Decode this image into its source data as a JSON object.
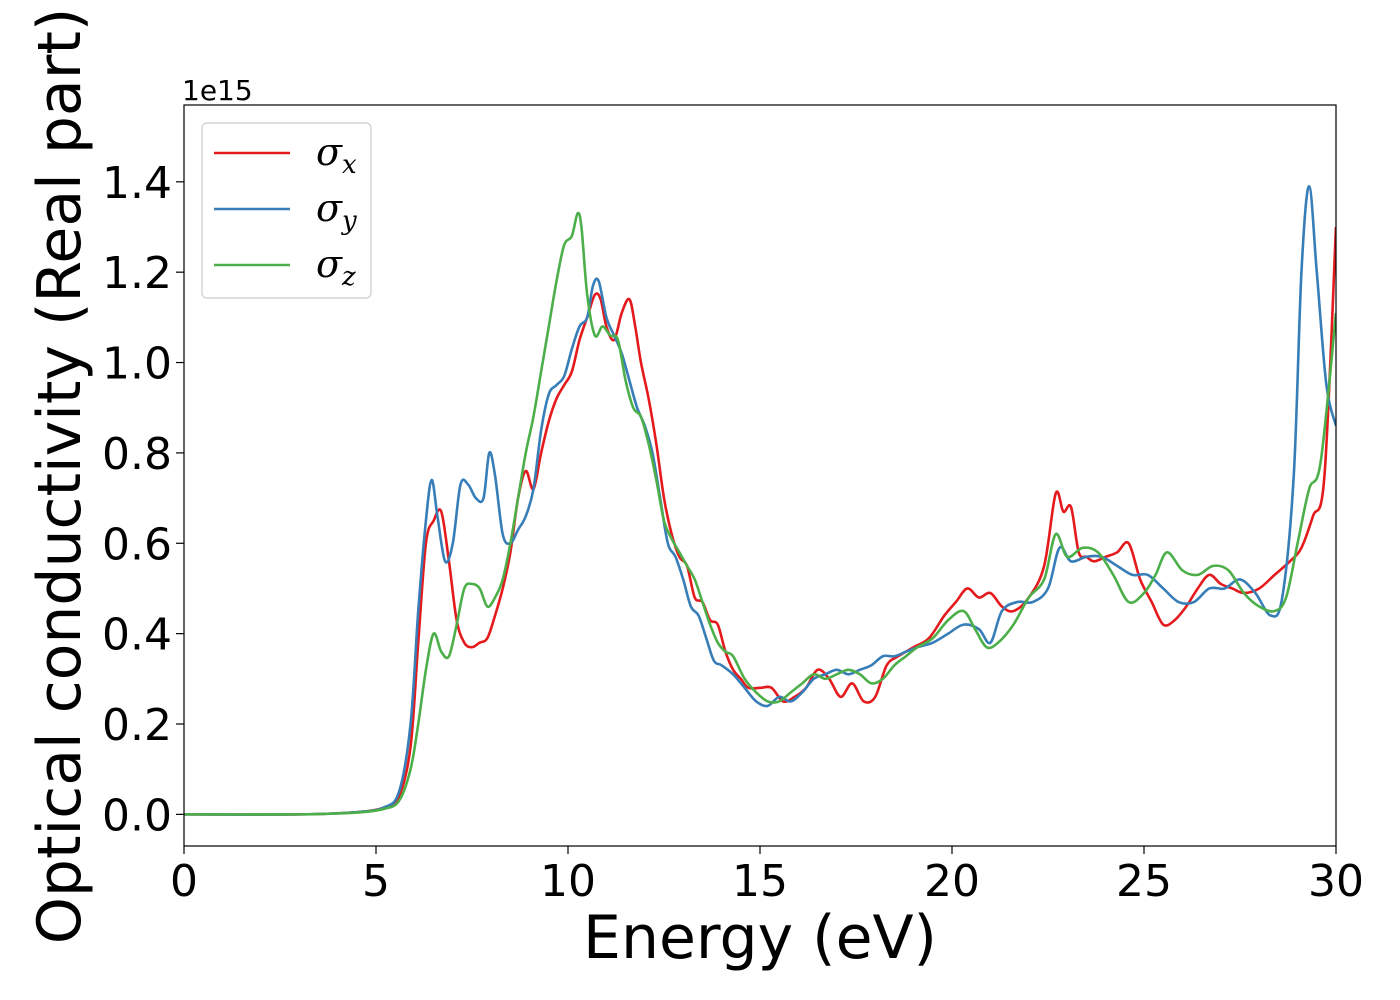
{
  "chart_data": {
    "type": "line",
    "title": "",
    "xlabel": "Energy (eV)",
    "ylabel": "Optical conductivity (Real part)",
    "y_offset_text": "1e15",
    "xlim": [
      0,
      30
    ],
    "ylim": [
      -0.07,
      1.57
    ],
    "x_ticks": [
      0,
      5,
      10,
      15,
      20,
      25,
      30
    ],
    "x_tick_labels": [
      "0",
      "5",
      "10",
      "15",
      "20",
      "25",
      "30"
    ],
    "y_ticks": [
      0.0,
      0.2,
      0.4,
      0.6,
      0.8,
      1.0,
      1.2,
      1.4
    ],
    "y_tick_labels": [
      "0.0",
      "0.2",
      "0.4",
      "0.6",
      "0.8",
      "1.0",
      "1.2",
      "1.4"
    ],
    "grid": false,
    "legend_position": "top-left",
    "series": [
      {
        "name": "σx",
        "symbol": "σ",
        "sub": "x",
        "color": "#e41a1c",
        "x": [
          0,
          3,
          4.5,
          5.2,
          5.6,
          5.9,
          6.1,
          6.3,
          6.5,
          6.7,
          6.9,
          7.1,
          7.3,
          7.5,
          7.7,
          7.9,
          8.1,
          8.3,
          8.5,
          8.7,
          8.9,
          9.1,
          9.3,
          9.5,
          9.7,
          9.9,
          10.1,
          10.3,
          10.5,
          10.7,
          10.85,
          11.0,
          11.2,
          11.4,
          11.6,
          11.75,
          11.9,
          12.1,
          12.3,
          12.5,
          12.7,
          12.9,
          13.1,
          13.3,
          13.5,
          13.7,
          13.9,
          14.1,
          14.3,
          14.5,
          14.7,
          15.0,
          15.3,
          15.6,
          15.9,
          16.2,
          16.5,
          16.8,
          17.1,
          17.4,
          17.7,
          18.0,
          18.3,
          18.6,
          19.0,
          19.4,
          19.8,
          20.1,
          20.4,
          20.7,
          21.0,
          21.3,
          21.6,
          22.0,
          22.4,
          22.7,
          22.9,
          23.1,
          23.3,
          23.5,
          23.7,
          24.0,
          24.3,
          24.6,
          24.9,
          25.2,
          25.5,
          25.8,
          26.1,
          26.4,
          26.7,
          27.0,
          27.3,
          27.6,
          28.0,
          28.4,
          28.8,
          29.1,
          29.4,
          29.7,
          30.0
        ],
        "y": [
          0.0,
          0.0,
          0.005,
          0.015,
          0.04,
          0.15,
          0.38,
          0.6,
          0.65,
          0.67,
          0.56,
          0.43,
          0.38,
          0.37,
          0.38,
          0.39,
          0.44,
          0.5,
          0.58,
          0.7,
          0.76,
          0.72,
          0.8,
          0.87,
          0.92,
          0.95,
          0.98,
          1.05,
          1.1,
          1.15,
          1.14,
          1.08,
          1.05,
          1.11,
          1.14,
          1.08,
          1.0,
          0.92,
          0.82,
          0.7,
          0.62,
          0.57,
          0.55,
          0.48,
          0.47,
          0.43,
          0.42,
          0.36,
          0.32,
          0.3,
          0.28,
          0.28,
          0.28,
          0.25,
          0.26,
          0.28,
          0.32,
          0.3,
          0.26,
          0.29,
          0.25,
          0.26,
          0.33,
          0.35,
          0.37,
          0.39,
          0.44,
          0.47,
          0.5,
          0.48,
          0.49,
          0.46,
          0.45,
          0.48,
          0.55,
          0.71,
          0.67,
          0.68,
          0.58,
          0.57,
          0.56,
          0.57,
          0.58,
          0.6,
          0.52,
          0.47,
          0.42,
          0.43,
          0.46,
          0.5,
          0.53,
          0.51,
          0.5,
          0.49,
          0.5,
          0.53,
          0.56,
          0.59,
          0.66,
          0.75,
          1.3
        ]
      },
      {
        "name": "σy",
        "symbol": "σ",
        "sub": "y",
        "color": "#377eb8",
        "x": [
          0,
          3,
          4.5,
          5.2,
          5.6,
          5.9,
          6.1,
          6.3,
          6.45,
          6.6,
          6.8,
          7.0,
          7.2,
          7.4,
          7.6,
          7.8,
          7.95,
          8.1,
          8.3,
          8.5,
          8.7,
          8.9,
          9.1,
          9.3,
          9.5,
          9.7,
          9.9,
          10.1,
          10.3,
          10.5,
          10.65,
          10.8,
          11.0,
          11.2,
          11.4,
          11.6,
          11.8,
          12.0,
          12.2,
          12.4,
          12.6,
          12.8,
          13.0,
          13.2,
          13.4,
          13.6,
          13.8,
          14.0,
          14.3,
          14.6,
          14.9,
          15.2,
          15.5,
          15.8,
          16.1,
          16.4,
          16.7,
          17.0,
          17.3,
          17.6,
          17.9,
          18.2,
          18.5,
          18.8,
          19.1,
          19.5,
          19.9,
          20.3,
          20.7,
          21.0,
          21.3,
          21.7,
          22.1,
          22.5,
          22.8,
          23.1,
          23.5,
          23.9,
          24.3,
          24.7,
          25.1,
          25.5,
          25.9,
          26.3,
          26.7,
          27.1,
          27.5,
          27.9,
          28.3,
          28.6,
          28.9,
          29.1,
          29.3,
          29.5,
          29.75,
          30.0
        ],
        "y": [
          0.0,
          0.0,
          0.005,
          0.015,
          0.05,
          0.2,
          0.45,
          0.65,
          0.74,
          0.66,
          0.56,
          0.6,
          0.73,
          0.73,
          0.7,
          0.7,
          0.8,
          0.75,
          0.62,
          0.6,
          0.63,
          0.66,
          0.72,
          0.85,
          0.93,
          0.95,
          0.97,
          1.03,
          1.08,
          1.1,
          1.17,
          1.18,
          1.1,
          1.06,
          1.02,
          0.96,
          0.9,
          0.86,
          0.8,
          0.7,
          0.6,
          0.57,
          0.52,
          0.46,
          0.44,
          0.39,
          0.34,
          0.33,
          0.31,
          0.28,
          0.25,
          0.24,
          0.26,
          0.25,
          0.27,
          0.3,
          0.31,
          0.32,
          0.31,
          0.32,
          0.33,
          0.35,
          0.35,
          0.36,
          0.37,
          0.38,
          0.4,
          0.42,
          0.41,
          0.38,
          0.45,
          0.47,
          0.47,
          0.5,
          0.59,
          0.56,
          0.57,
          0.57,
          0.55,
          0.53,
          0.53,
          0.5,
          0.47,
          0.47,
          0.5,
          0.5,
          0.52,
          0.49,
          0.44,
          0.48,
          0.75,
          1.2,
          1.39,
          1.2,
          0.95,
          0.86
        ]
      },
      {
        "name": "σz",
        "symbol": "σ",
        "sub": "z",
        "color": "#4daf4a",
        "x": [
          0,
          3,
          4.5,
          5.2,
          5.6,
          5.9,
          6.1,
          6.3,
          6.5,
          6.7,
          6.9,
          7.1,
          7.3,
          7.5,
          7.7,
          7.9,
          8.1,
          8.3,
          8.5,
          8.7,
          8.9,
          9.1,
          9.3,
          9.5,
          9.7,
          9.9,
          10.1,
          10.25,
          10.35,
          10.5,
          10.7,
          10.9,
          11.1,
          11.3,
          11.5,
          11.7,
          11.9,
          12.1,
          12.3,
          12.5,
          12.7,
          12.9,
          13.1,
          13.3,
          13.5,
          13.7,
          13.9,
          14.1,
          14.3,
          14.6,
          14.9,
          15.2,
          15.5,
          15.8,
          16.1,
          16.4,
          16.7,
          17.0,
          17.3,
          17.6,
          17.9,
          18.2,
          18.5,
          18.8,
          19.1,
          19.5,
          19.9,
          20.3,
          20.6,
          20.9,
          21.2,
          21.6,
          22.0,
          22.4,
          22.7,
          23.0,
          23.4,
          23.8,
          24.2,
          24.6,
          25.0,
          25.3,
          25.6,
          26.0,
          26.4,
          26.8,
          27.2,
          27.6,
          28.0,
          28.4,
          28.7,
          29.0,
          29.3,
          29.6,
          30.0
        ],
        "y": [
          0.0,
          0.0,
          0.004,
          0.012,
          0.03,
          0.1,
          0.2,
          0.32,
          0.4,
          0.36,
          0.35,
          0.42,
          0.5,
          0.51,
          0.5,
          0.46,
          0.48,
          0.52,
          0.6,
          0.7,
          0.8,
          0.88,
          0.98,
          1.08,
          1.18,
          1.26,
          1.28,
          1.33,
          1.3,
          1.15,
          1.06,
          1.08,
          1.06,
          1.05,
          0.96,
          0.9,
          0.88,
          0.82,
          0.74,
          0.65,
          0.61,
          0.58,
          0.55,
          0.52,
          0.47,
          0.42,
          0.38,
          0.36,
          0.35,
          0.3,
          0.27,
          0.25,
          0.25,
          0.27,
          0.29,
          0.31,
          0.3,
          0.31,
          0.32,
          0.31,
          0.29,
          0.3,
          0.33,
          0.35,
          0.37,
          0.39,
          0.43,
          0.45,
          0.41,
          0.37,
          0.38,
          0.42,
          0.48,
          0.52,
          0.62,
          0.57,
          0.59,
          0.58,
          0.53,
          0.47,
          0.49,
          0.53,
          0.58,
          0.54,
          0.53,
          0.55,
          0.54,
          0.49,
          0.46,
          0.45,
          0.48,
          0.6,
          0.72,
          0.78,
          1.11
        ]
      }
    ]
  }
}
